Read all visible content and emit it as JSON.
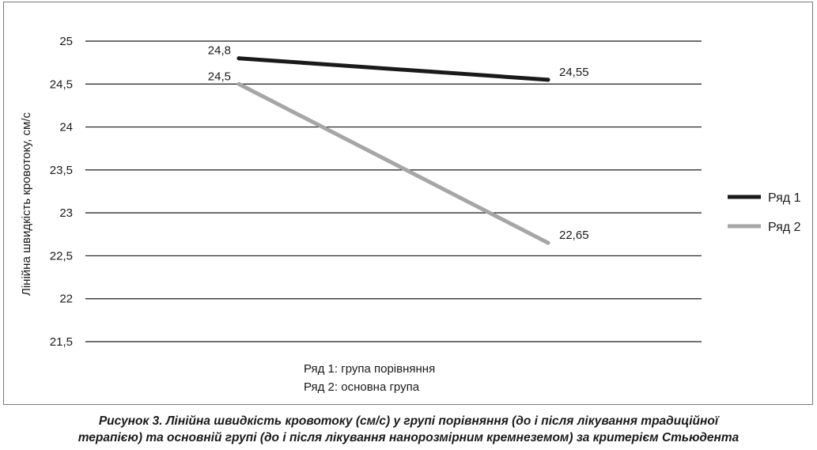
{
  "chart_data": {
    "type": "line",
    "x": [
      "",
      ""
    ],
    "series": [
      {
        "name": "Ряд 1",
        "values": [
          24.8,
          24.55
        ],
        "labels": [
          "24,8",
          "24,55"
        ],
        "color": "#1a1a1a"
      },
      {
        "name": "Ряд 2",
        "values": [
          24.5,
          22.65
        ],
        "labels": [
          "24,5",
          "22,65"
        ],
        "color": "#a6a6a6"
      }
    ],
    "ylabel": "Лінійна швидкість кровотоку, см/с",
    "ylim": [
      21.5,
      25
    ],
    "yticks": [
      25,
      24.5,
      24,
      23.5,
      23,
      22.5,
      22,
      21.5
    ],
    "ytick_labels": [
      "25",
      "24,5",
      "24",
      "23,5",
      "23",
      "22,5",
      "22",
      "21,5"
    ],
    "grid": true,
    "legend_position": "right",
    "notes": [
      "Ряд 1: група порівняння",
      "Ряд 2: основна група"
    ]
  },
  "caption": {
    "line1": "Рисунок 3. Лінійна швидкість кровотоку (см/с) у групі порівняння (до і після лікування традиційної",
    "line2": "терапією) та основній групі (до і після лікування нанорозмірним кремнеземом) за критерієм Стьюдента"
  }
}
